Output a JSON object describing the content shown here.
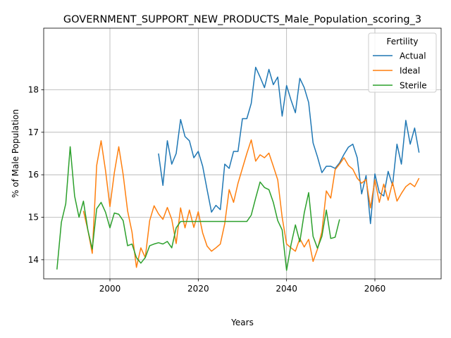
{
  "chart_data": {
    "type": "line",
    "title": "GOVERNMENT_SUPPORT_NEW_PRODUCTS_Male_Population_scoring_3",
    "xlabel": "Years",
    "ylabel": "% of Male Population",
    "xlim": [
      1985,
      2075
    ],
    "ylim": [
      13.55,
      19.45
    ],
    "xticks": [
      2000,
      2020,
      2040,
      2060
    ],
    "yticks": [
      14,
      15,
      16,
      17,
      18
    ],
    "grid": true,
    "legend": {
      "title": "Fertility",
      "position": "top-right"
    },
    "series": [
      {
        "name": "Actual",
        "color": "#1f77b4",
        "x": [
          2011,
          2012,
          2013,
          2014,
          2015,
          2016,
          2017,
          2018,
          2019,
          2020,
          2021,
          2022,
          2023,
          2024,
          2025,
          2026,
          2027,
          2028,
          2029,
          2030,
          2031,
          2032,
          2033,
          2034,
          2035,
          2036,
          2037,
          2038,
          2039,
          2040,
          2041,
          2042,
          2043,
          2044,
          2045,
          2046,
          2047,
          2048,
          2049,
          2050,
          2051,
          2052,
          2053,
          2054,
          2055,
          2056,
          2057,
          2058,
          2059,
          2060,
          2061,
          2062,
          2063,
          2064,
          2065,
          2066,
          2067,
          2068,
          2069,
          2070
        ],
        "y": [
          16.5,
          15.75,
          16.8,
          16.25,
          16.5,
          17.3,
          16.9,
          16.8,
          16.4,
          16.55,
          16.2,
          15.65,
          15.12,
          15.28,
          15.18,
          16.25,
          16.15,
          16.55,
          16.55,
          17.32,
          17.32,
          17.68,
          18.53,
          18.3,
          18.05,
          18.48,
          18.12,
          18.3,
          17.38,
          18.1,
          17.76,
          17.46,
          18.27,
          18.05,
          17.7,
          16.75,
          16.42,
          16.05,
          16.2,
          16.2,
          16.15,
          16.28,
          16.48,
          16.65,
          16.72,
          16.4,
          15.55,
          15.98,
          14.85,
          16.02,
          15.58,
          15.5,
          16.08,
          15.75,
          16.72,
          16.25,
          17.28,
          16.72,
          17.1,
          16.52
        ]
      },
      {
        "name": "Ideal",
        "color": "#ff7f0e",
        "x": [
          1994,
          1995,
          1996,
          1997,
          1998,
          1999,
          2000,
          2001,
          2002,
          2003,
          2004,
          2005,
          2006,
          2007,
          2008,
          2009,
          2010,
          2011,
          2012,
          2013,
          2014,
          2015,
          2016,
          2017,
          2018,
          2019,
          2020,
          2021,
          2022,
          2023,
          2024,
          2025,
          2026,
          2027,
          2028,
          2029,
          2030,
          2031,
          2032,
          2033,
          2034,
          2035,
          2036,
          2037,
          2038,
          2039,
          2040,
          2041,
          2042,
          2043,
          2044,
          2045,
          2046,
          2047,
          2048,
          2049,
          2050,
          2051,
          2052,
          2053,
          2054,
          2055,
          2056,
          2057,
          2058,
          2059,
          2060,
          2061,
          2062,
          2063,
          2064,
          2065,
          2066,
          2067,
          2068,
          2069,
          2070
        ],
        "y": [
          15.15,
          14.7,
          14.15,
          16.22,
          16.8,
          16.1,
          15.25,
          16.05,
          16.66,
          16.0,
          15.15,
          14.65,
          13.82,
          14.28,
          14.05,
          14.92,
          15.27,
          15.08,
          14.95,
          15.23,
          14.95,
          14.38,
          15.22,
          14.75,
          15.17,
          14.76,
          15.13,
          14.63,
          14.32,
          14.2,
          14.28,
          14.37,
          14.85,
          15.65,
          15.35,
          15.8,
          16.15,
          16.5,
          16.82,
          16.32,
          16.47,
          16.4,
          16.51,
          16.2,
          15.88,
          15.0,
          14.37,
          14.28,
          14.2,
          14.5,
          14.3,
          14.48,
          13.96,
          14.25,
          14.66,
          15.62,
          15.45,
          16.12,
          16.25,
          16.4,
          16.22,
          16.13,
          15.92,
          15.8,
          15.89,
          15.22,
          15.88,
          15.35,
          15.78,
          15.4,
          15.82,
          15.38,
          15.56,
          15.72,
          15.8,
          15.72,
          15.92
        ]
      },
      {
        "name": "Sterile",
        "color": "#2ca02c",
        "x": [
          1988,
          1989,
          1990,
          1991,
          1992,
          1993,
          1994,
          1995,
          1996,
          1997,
          1998,
          1999,
          2000,
          2001,
          2002,
          2003,
          2004,
          2005,
          2006,
          2007,
          2008,
          2009,
          2010,
          2011,
          2012,
          2013,
          2014,
          2015,
          2016,
          2017,
          2018,
          2019,
          2020,
          2021,
          2022,
          2023,
          2024,
          2025,
          2026,
          2027,
          2028,
          2029,
          2030,
          2031,
          2032,
          2033,
          2034,
          2035,
          2036,
          2037,
          2038,
          2039,
          2040,
          2041,
          2042,
          2043,
          2044,
          2045,
          2046,
          2047,
          2048,
          2049,
          2050,
          2051,
          2052
        ],
        "y": [
          13.77,
          14.88,
          15.32,
          16.66,
          15.5,
          15.0,
          15.38,
          14.7,
          14.25,
          15.2,
          15.35,
          15.12,
          14.75,
          15.1,
          15.07,
          14.92,
          14.33,
          14.37,
          14.05,
          13.92,
          14.05,
          14.33,
          14.37,
          14.4,
          14.37,
          14.43,
          14.28,
          14.75,
          14.9,
          14.9,
          14.9,
          14.9,
          14.9,
          14.9,
          14.9,
          14.9,
          14.9,
          14.9,
          14.9,
          14.9,
          14.9,
          14.9,
          14.9,
          14.9,
          15.05,
          15.45,
          15.83,
          15.7,
          15.65,
          15.35,
          14.92,
          14.7,
          13.75,
          14.35,
          14.82,
          14.42,
          15.1,
          15.58,
          14.55,
          14.27,
          14.55,
          15.17,
          14.5,
          14.53,
          14.95
        ]
      }
    ]
  }
}
